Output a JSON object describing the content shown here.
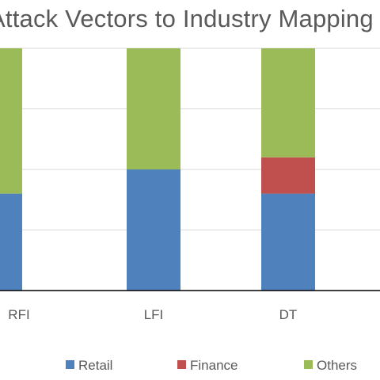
{
  "chart_data": {
    "type": "bar",
    "stacked": true,
    "title": "Attack Vectors to Industry Mapping",
    "xlabel": "",
    "ylabel": "",
    "categories": [
      "RFI",
      "LFI",
      "DT"
    ],
    "series": [
      {
        "name": "Retail",
        "values": [
          1.6,
          2.0,
          1.6
        ],
        "color": "#4F81BD"
      },
      {
        "name": "Finance",
        "values": [
          0,
          0,
          0.6
        ],
        "color": "#C0504D"
      },
      {
        "name": "Others",
        "values": [
          2.4,
          2.0,
          1.8
        ],
        "color": "#9BBB59"
      }
    ],
    "ylim": [
      0,
      4
    ],
    "yticks": [
      0,
      1,
      2,
      3,
      4
    ],
    "grid": true,
    "legend": "bottom"
  }
}
